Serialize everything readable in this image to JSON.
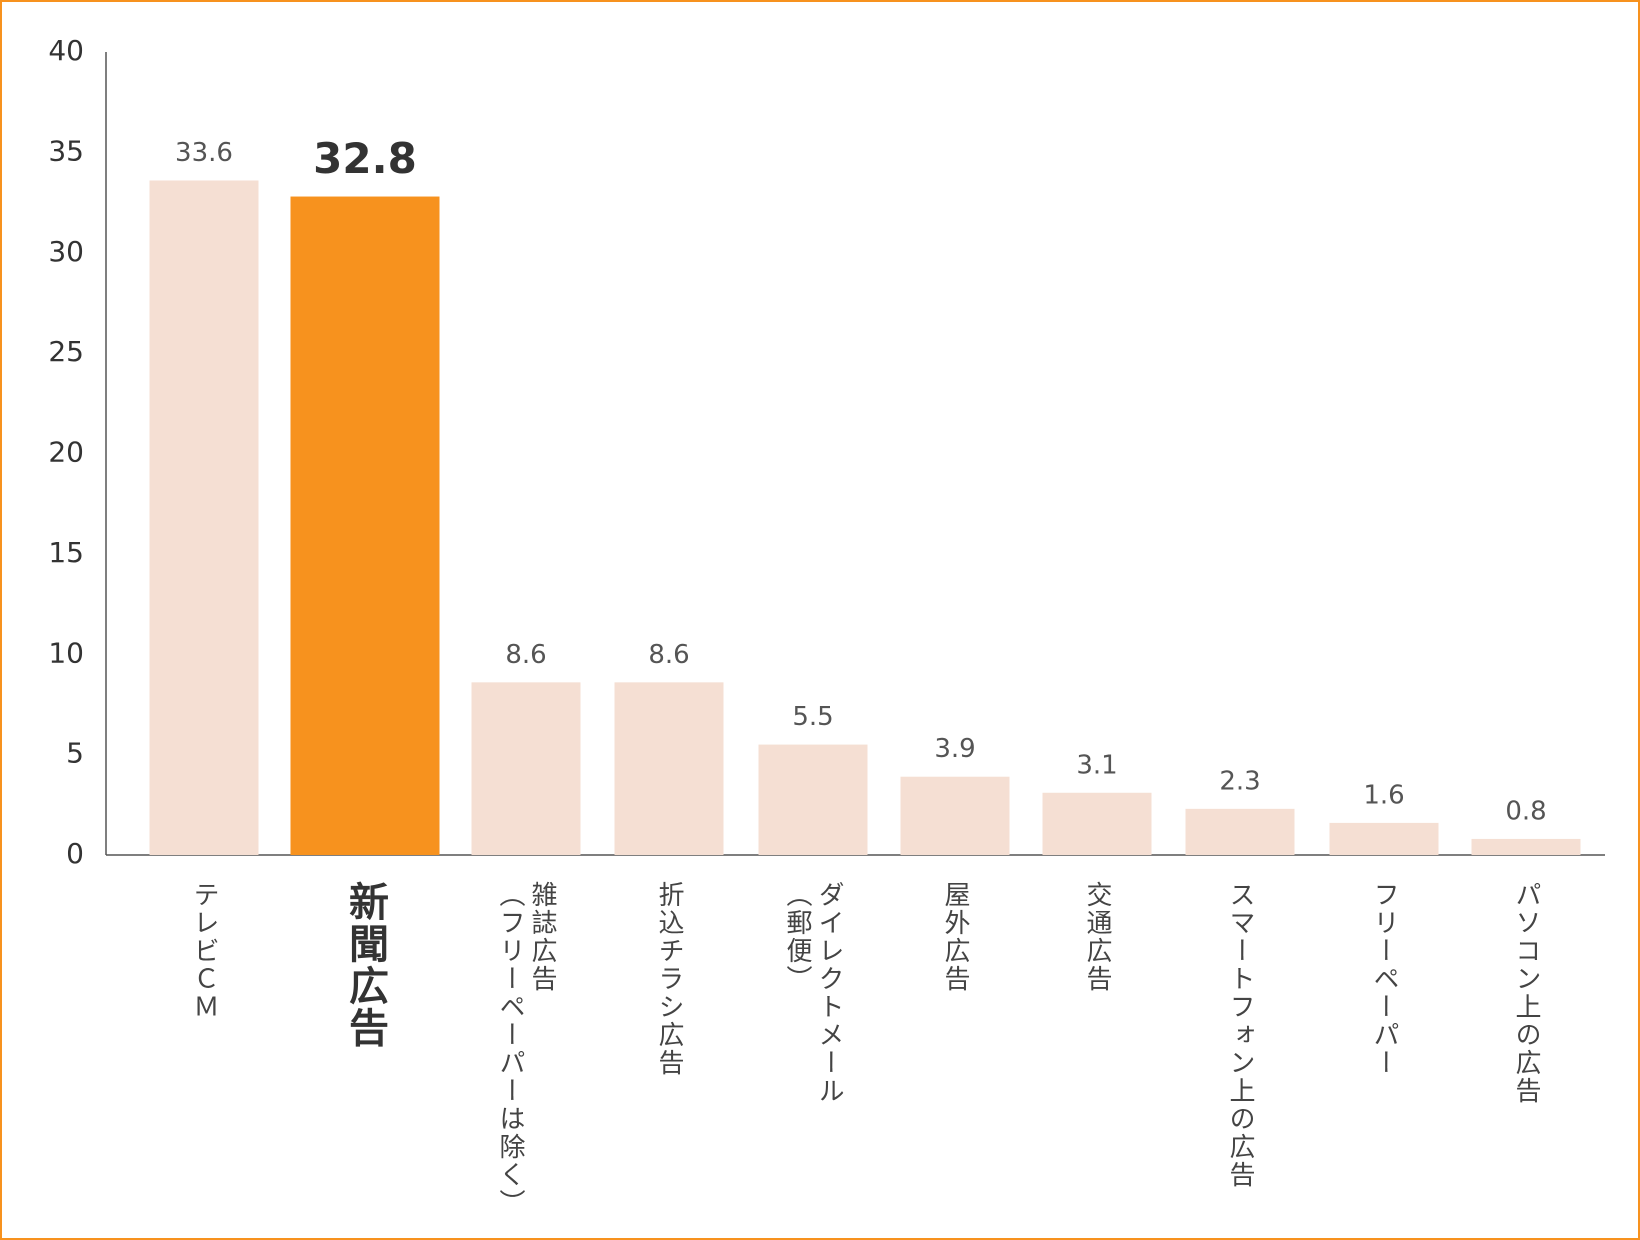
{
  "chart_data": {
    "type": "bar",
    "categories": [
      "テレビＣＭ",
      "新聞広告",
      "雑誌広告\n（フリーペーパーは除く）",
      "折込チラシ広告",
      "ダイレクトメール\n（郵便）",
      "屋外広告",
      "交通広告",
      "スマートフォン上の広告",
      "フリーペーパー",
      "パソコン上の広告"
    ],
    "values": [
      33.6,
      32.8,
      8.6,
      8.6,
      5.5,
      3.9,
      3.1,
      2.3,
      1.6,
      0.8
    ],
    "colors": [
      "#f5dfd3",
      "#f7921e",
      "#f5dfd3",
      "#f5dfd3",
      "#f5dfd3",
      "#f5dfd3",
      "#f5dfd3",
      "#f5dfd3",
      "#f5dfd3",
      "#f5dfd3"
    ],
    "ylim": [
      0,
      40
    ],
    "yticks": [
      0,
      5,
      10,
      15,
      20,
      25,
      30,
      35,
      40
    ],
    "grid": false
  }
}
